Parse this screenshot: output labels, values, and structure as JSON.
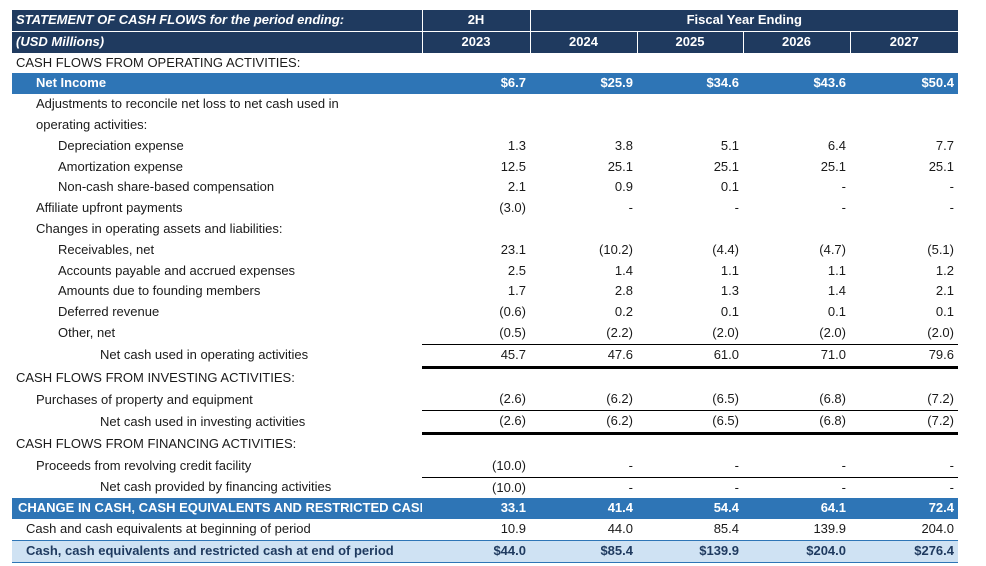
{
  "header": {
    "title_line1": "STATEMENT OF CASH FLOWS for the period ending:",
    "title_line2": "(USD Millions)",
    "col1_top": "2H",
    "fiscal_label": "Fiscal Year Ending",
    "years": [
      "2023",
      "2024",
      "2025",
      "2026",
      "2027"
    ]
  },
  "rows": [
    {
      "label": "CASH FLOWS FROM OPERATING ACTIVITIES:",
      "values": [
        "",
        "",
        "",
        "",
        ""
      ]
    },
    {
      "label": "Net Income",
      "values": [
        "$6.7",
        "$25.9",
        "$34.6",
        "$43.6",
        "$50.4"
      ]
    },
    {
      "label": "Adjustments to reconcile net loss to net cash used in",
      "values": [
        "",
        "",
        "",
        "",
        ""
      ]
    },
    {
      "label": "operating activities:",
      "values": [
        "",
        "",
        "",
        "",
        ""
      ]
    },
    {
      "label": "Depreciation expense",
      "values": [
        "1.3",
        "3.8",
        "5.1",
        "6.4",
        "7.7"
      ]
    },
    {
      "label": "Amortization expense",
      "values": [
        "12.5",
        "25.1",
        "25.1",
        "25.1",
        "25.1"
      ]
    },
    {
      "label": "Non-cash share-based compensation",
      "values": [
        "2.1",
        "0.9",
        "0.1",
        "-",
        "-"
      ]
    },
    {
      "label": "Affiliate upfront payments",
      "values": [
        "(3.0)",
        "-",
        "-",
        "-",
        "-"
      ]
    },
    {
      "label": "Changes in operating assets and liabilities:",
      "values": [
        "",
        "",
        "",
        "",
        ""
      ]
    },
    {
      "label": "Receivables, net",
      "values": [
        "23.1",
        "(10.2)",
        "(4.4)",
        "(4.7)",
        "(5.1)"
      ]
    },
    {
      "label": "Accounts payable and accrued expenses",
      "values": [
        "2.5",
        "1.4",
        "1.1",
        "1.1",
        "1.2"
      ]
    },
    {
      "label": "Amounts due to founding members",
      "values": [
        "1.7",
        "2.8",
        "1.3",
        "1.4",
        "2.1"
      ]
    },
    {
      "label": "Deferred revenue",
      "values": [
        "(0.6)",
        "0.2",
        "0.1",
        "0.1",
        "0.1"
      ]
    },
    {
      "label": "Other, net",
      "values": [
        "(0.5)",
        "(2.2)",
        "(2.0)",
        "(2.0)",
        "(2.0)"
      ]
    },
    {
      "label": "Net cash used in operating activities",
      "values": [
        "45.7",
        "47.6",
        "61.0",
        "71.0",
        "79.6"
      ]
    },
    {
      "label": "CASH FLOWS FROM INVESTING ACTIVITIES:",
      "values": [
        "",
        "",
        "",
        "",
        ""
      ]
    },
    {
      "label": "Purchases of property and equipment",
      "values": [
        "(2.6)",
        "(6.2)",
        "(6.5)",
        "(6.8)",
        "(7.2)"
      ]
    },
    {
      "label": "Net cash used in investing activities",
      "values": [
        "(2.6)",
        "(6.2)",
        "(6.5)",
        "(6.8)",
        "(7.2)"
      ]
    },
    {
      "label": "CASH FLOWS FROM FINANCING ACTIVITIES:",
      "values": [
        "",
        "",
        "",
        "",
        ""
      ]
    },
    {
      "label": "Proceeds from revolving credit facility",
      "values": [
        "(10.0)",
        "-",
        "-",
        "-",
        "-"
      ]
    },
    {
      "label": "Net cash provided by financing activities",
      "values": [
        "(10.0)",
        "-",
        "-",
        "-",
        "-"
      ]
    },
    {
      "label": "CHANGE IN CASH, CASH EQUIVALENTS AND RESTRICTED CASH",
      "values": [
        "33.1",
        "41.4",
        "54.4",
        "64.1",
        "72.4"
      ]
    },
    {
      "label": "Cash and cash equivalents at beginning of period",
      "values": [
        "10.9",
        "44.0",
        "85.4",
        "139.9",
        "204.0"
      ]
    },
    {
      "label": "Cash, cash equivalents and restricted cash at end of period",
      "values": [
        "$44.0",
        "$85.4",
        "$139.9",
        "$204.0",
        "$276.4"
      ]
    }
  ],
  "colors": {
    "header_bg": "#1f3a5f",
    "highlight_bg": "#2e75b6",
    "total_bg": "#cfe2f3"
  }
}
